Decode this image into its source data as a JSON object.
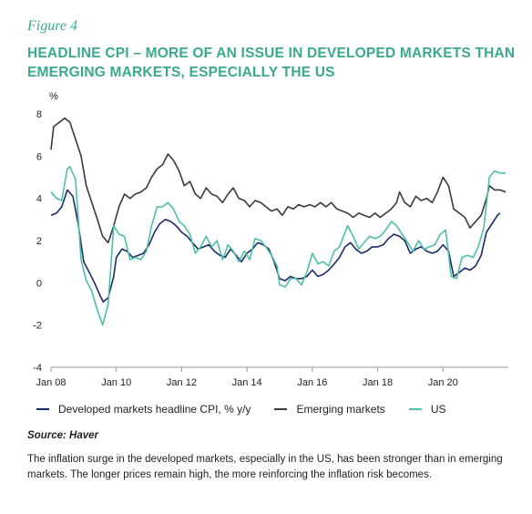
{
  "figure_label": "Figure 4",
  "title_lines": [
    "HEADLINE CPI – MORE OF AN ISSUE IN DEVELOPED MARKETS THAN",
    "EMERGING MARKETS, ESPECIALLY THE US"
  ],
  "source": "Source: Haver",
  "note": "The inflation surge in the developed markets, especially in the US, has been stronger than in emerging markets. The longer prices remain high, the more reinforcing the inflation risk becomes.",
  "colors": {
    "developed": "#1b2a6b",
    "emerging": "#3a3a3a",
    "us": "#4dbfa8",
    "title": "#3aaa8e",
    "grid": "#d9d9d9"
  },
  "chart_data": {
    "type": "line",
    "ylabel": "%",
    "ylim": [
      -4,
      8
    ],
    "yticks": [
      -4,
      -2,
      0,
      2,
      4,
      6,
      8
    ],
    "xlim": [
      2008.0,
      2022.0
    ],
    "xticks": [
      {
        "x": 2008,
        "label": "Jan 08"
      },
      {
        "x": 2010,
        "label": "Jan 10"
      },
      {
        "x": 2012,
        "label": "Jan 12"
      },
      {
        "x": 2014,
        "label": "Jan 14"
      },
      {
        "x": 2016,
        "label": "Jan 16"
      },
      {
        "x": 2018,
        "label": "Jan 18"
      },
      {
        "x": 2020,
        "label": "Jan 20"
      }
    ],
    "grid": false,
    "legend_position": "bottom",
    "series": [
      {
        "name": "Developed markets headline CPI, % y/y",
        "color": "#1b2a6b",
        "points": [
          [
            2008.0,
            3.2
          ],
          [
            2008.17,
            3.3
          ],
          [
            2008.33,
            3.6
          ],
          [
            2008.5,
            4.4
          ],
          [
            2008.67,
            4.1
          ],
          [
            2008.83,
            2.8
          ],
          [
            2009.0,
            1.0
          ],
          [
            2009.17,
            0.5
          ],
          [
            2009.33,
            0.0
          ],
          [
            2009.5,
            -0.6
          ],
          [
            2009.6,
            -0.9
          ],
          [
            2009.75,
            -0.7
          ],
          [
            2009.92,
            0.3
          ],
          [
            2010.0,
            1.2
          ],
          [
            2010.17,
            1.6
          ],
          [
            2010.33,
            1.5
          ],
          [
            2010.5,
            1.2
          ],
          [
            2010.67,
            1.3
          ],
          [
            2010.83,
            1.4
          ],
          [
            2011.0,
            1.8
          ],
          [
            2011.17,
            2.4
          ],
          [
            2011.33,
            2.8
          ],
          [
            2011.5,
            3.0
          ],
          [
            2011.67,
            2.9
          ],
          [
            2011.83,
            2.7
          ],
          [
            2012.0,
            2.4
          ],
          [
            2012.17,
            2.2
          ],
          [
            2012.33,
            1.9
          ],
          [
            2012.5,
            1.6
          ],
          [
            2012.67,
            1.7
          ],
          [
            2012.83,
            1.8
          ],
          [
            2013.0,
            1.5
          ],
          [
            2013.17,
            1.3
          ],
          [
            2013.33,
            1.2
          ],
          [
            2013.5,
            1.6
          ],
          [
            2013.67,
            1.3
          ],
          [
            2013.83,
            1.0
          ],
          [
            2014.0,
            1.4
          ],
          [
            2014.17,
            1.6
          ],
          [
            2014.33,
            1.9
          ],
          [
            2014.5,
            1.8
          ],
          [
            2014.67,
            1.6
          ],
          [
            2014.83,
            1.0
          ],
          [
            2015.0,
            0.2
          ],
          [
            2015.17,
            0.1
          ],
          [
            2015.33,
            0.3
          ],
          [
            2015.5,
            0.2
          ],
          [
            2015.67,
            0.2
          ],
          [
            2015.83,
            0.3
          ],
          [
            2016.0,
            0.6
          ],
          [
            2016.17,
            0.3
          ],
          [
            2016.33,
            0.4
          ],
          [
            2016.5,
            0.6
          ],
          [
            2016.67,
            0.9
          ],
          [
            2016.83,
            1.2
          ],
          [
            2017.0,
            1.7
          ],
          [
            2017.17,
            1.9
          ],
          [
            2017.33,
            1.6
          ],
          [
            2017.5,
            1.4
          ],
          [
            2017.67,
            1.5
          ],
          [
            2017.83,
            1.7
          ],
          [
            2018.0,
            1.7
          ],
          [
            2018.17,
            1.8
          ],
          [
            2018.33,
            2.1
          ],
          [
            2018.5,
            2.3
          ],
          [
            2018.67,
            2.2
          ],
          [
            2018.83,
            2.0
          ],
          [
            2019.0,
            1.4
          ],
          [
            2019.17,
            1.6
          ],
          [
            2019.33,
            1.7
          ],
          [
            2019.5,
            1.5
          ],
          [
            2019.67,
            1.4
          ],
          [
            2019.83,
            1.5
          ],
          [
            2020.0,
            1.8
          ],
          [
            2020.17,
            1.5
          ],
          [
            2020.33,
            0.3
          ],
          [
            2020.5,
            0.5
          ],
          [
            2020.67,
            0.7
          ],
          [
            2020.83,
            0.6
          ],
          [
            2021.0,
            0.8
          ],
          [
            2021.17,
            1.3
          ],
          [
            2021.33,
            2.4
          ],
          [
            2021.5,
            2.8
          ],
          [
            2021.67,
            3.2
          ],
          [
            2021.75,
            3.3
          ]
        ]
      },
      {
        "name": "Emerging markets",
        "color": "#3a3a3a",
        "points": [
          [
            2008.0,
            6.3
          ],
          [
            2008.08,
            7.4
          ],
          [
            2008.25,
            7.6
          ],
          [
            2008.42,
            7.8
          ],
          [
            2008.58,
            7.6
          ],
          [
            2008.75,
            6.8
          ],
          [
            2008.92,
            6.0
          ],
          [
            2009.08,
            4.6
          ],
          [
            2009.25,
            3.8
          ],
          [
            2009.42,
            3.0
          ],
          [
            2009.58,
            2.2
          ],
          [
            2009.75,
            1.9
          ],
          [
            2009.92,
            2.7
          ],
          [
            2010.08,
            3.6
          ],
          [
            2010.25,
            4.2
          ],
          [
            2010.42,
            4.0
          ],
          [
            2010.58,
            4.2
          ],
          [
            2010.75,
            4.3
          ],
          [
            2010.92,
            4.5
          ],
          [
            2011.08,
            5.0
          ],
          [
            2011.25,
            5.4
          ],
          [
            2011.42,
            5.6
          ],
          [
            2011.58,
            6.1
          ],
          [
            2011.75,
            5.8
          ],
          [
            2011.92,
            5.3
          ],
          [
            2012.08,
            4.6
          ],
          [
            2012.25,
            4.8
          ],
          [
            2012.42,
            4.2
          ],
          [
            2012.58,
            4.0
          ],
          [
            2012.75,
            4.5
          ],
          [
            2012.92,
            4.2
          ],
          [
            2013.08,
            4.1
          ],
          [
            2013.25,
            3.8
          ],
          [
            2013.42,
            4.2
          ],
          [
            2013.58,
            4.5
          ],
          [
            2013.75,
            4.0
          ],
          [
            2013.92,
            3.9
          ],
          [
            2014.08,
            3.6
          ],
          [
            2014.25,
            3.9
          ],
          [
            2014.42,
            3.8
          ],
          [
            2014.58,
            3.6
          ],
          [
            2014.75,
            3.4
          ],
          [
            2014.92,
            3.5
          ],
          [
            2015.08,
            3.2
          ],
          [
            2015.25,
            3.6
          ],
          [
            2015.42,
            3.5
          ],
          [
            2015.58,
            3.7
          ],
          [
            2015.75,
            3.6
          ],
          [
            2015.92,
            3.7
          ],
          [
            2016.08,
            3.6
          ],
          [
            2016.25,
            3.8
          ],
          [
            2016.42,
            3.6
          ],
          [
            2016.58,
            3.8
          ],
          [
            2016.75,
            3.5
          ],
          [
            2016.92,
            3.4
          ],
          [
            2017.08,
            3.3
          ],
          [
            2017.25,
            3.1
          ],
          [
            2017.42,
            3.3
          ],
          [
            2017.58,
            3.2
          ],
          [
            2017.75,
            3.1
          ],
          [
            2017.92,
            3.3
          ],
          [
            2018.08,
            3.1
          ],
          [
            2018.25,
            3.3
          ],
          [
            2018.42,
            3.5
          ],
          [
            2018.58,
            3.8
          ],
          [
            2018.67,
            4.3
          ],
          [
            2018.83,
            3.8
          ],
          [
            2019.0,
            3.6
          ],
          [
            2019.17,
            4.1
          ],
          [
            2019.33,
            3.9
          ],
          [
            2019.5,
            4.0
          ],
          [
            2019.67,
            3.8
          ],
          [
            2019.83,
            4.3
          ],
          [
            2020.0,
            5.0
          ],
          [
            2020.17,
            4.6
          ],
          [
            2020.33,
            3.5
          ],
          [
            2020.5,
            3.3
          ],
          [
            2020.67,
            3.1
          ],
          [
            2020.83,
            2.6
          ],
          [
            2021.0,
            2.9
          ],
          [
            2021.17,
            3.2
          ],
          [
            2021.33,
            4.0
          ],
          [
            2021.42,
            4.6
          ],
          [
            2021.58,
            4.4
          ],
          [
            2021.75,
            4.4
          ],
          [
            2021.92,
            4.3
          ]
        ]
      },
      {
        "name": "US",
        "color": "#4dbfa8",
        "points": [
          [
            2008.0,
            4.3
          ],
          [
            2008.17,
            4.0
          ],
          [
            2008.33,
            3.9
          ],
          [
            2008.5,
            5.4
          ],
          [
            2008.58,
            5.5
          ],
          [
            2008.75,
            4.9
          ],
          [
            2008.92,
            1.1
          ],
          [
            2009.08,
            0.1
          ],
          [
            2009.25,
            -0.4
          ],
          [
            2009.42,
            -1.3
          ],
          [
            2009.58,
            -2.0
          ],
          [
            2009.75,
            -1.0
          ],
          [
            2009.92,
            2.7
          ],
          [
            2010.08,
            2.3
          ],
          [
            2010.25,
            2.2
          ],
          [
            2010.42,
            1.1
          ],
          [
            2010.58,
            1.2
          ],
          [
            2010.75,
            1.1
          ],
          [
            2010.92,
            1.5
          ],
          [
            2011.08,
            2.7
          ],
          [
            2011.25,
            3.6
          ],
          [
            2011.42,
            3.6
          ],
          [
            2011.58,
            3.8
          ],
          [
            2011.75,
            3.5
          ],
          [
            2011.92,
            2.9
          ],
          [
            2012.08,
            2.7
          ],
          [
            2012.25,
            2.3
          ],
          [
            2012.42,
            1.4
          ],
          [
            2012.58,
            1.7
          ],
          [
            2012.75,
            2.2
          ],
          [
            2012.92,
            1.7
          ],
          [
            2013.08,
            2.0
          ],
          [
            2013.25,
            1.1
          ],
          [
            2013.42,
            1.8
          ],
          [
            2013.58,
            1.5
          ],
          [
            2013.75,
            1.0
          ],
          [
            2013.92,
            1.5
          ],
          [
            2014.08,
            1.1
          ],
          [
            2014.25,
            2.1
          ],
          [
            2014.42,
            2.0
          ],
          [
            2014.58,
            1.7
          ],
          [
            2014.75,
            1.3
          ],
          [
            2014.92,
            0.8
          ],
          [
            2015.0,
            -0.1
          ],
          [
            2015.17,
            -0.2
          ],
          [
            2015.33,
            0.2
          ],
          [
            2015.5,
            0.2
          ],
          [
            2015.67,
            -0.1
          ],
          [
            2015.83,
            0.5
          ],
          [
            2016.0,
            1.4
          ],
          [
            2016.17,
            0.9
          ],
          [
            2016.33,
            1.0
          ],
          [
            2016.5,
            0.8
          ],
          [
            2016.67,
            1.5
          ],
          [
            2016.83,
            1.7
          ],
          [
            2017.08,
            2.7
          ],
          [
            2017.25,
            2.2
          ],
          [
            2017.42,
            1.6
          ],
          [
            2017.58,
            1.9
          ],
          [
            2017.75,
            2.2
          ],
          [
            2017.92,
            2.1
          ],
          [
            2018.08,
            2.2
          ],
          [
            2018.25,
            2.5
          ],
          [
            2018.42,
            2.9
          ],
          [
            2018.58,
            2.7
          ],
          [
            2018.75,
            2.3
          ],
          [
            2018.92,
            1.9
          ],
          [
            2019.08,
            1.5
          ],
          [
            2019.25,
            2.0
          ],
          [
            2019.42,
            1.6
          ],
          [
            2019.58,
            1.7
          ],
          [
            2019.75,
            1.8
          ],
          [
            2019.92,
            2.3
          ],
          [
            2020.08,
            2.5
          ],
          [
            2020.25,
            0.3
          ],
          [
            2020.42,
            0.2
          ],
          [
            2020.58,
            1.2
          ],
          [
            2020.75,
            1.3
          ],
          [
            2020.92,
            1.2
          ],
          [
            2021.08,
            1.7
          ],
          [
            2021.25,
            2.6
          ],
          [
            2021.42,
            5.0
          ],
          [
            2021.58,
            5.3
          ],
          [
            2021.75,
            5.2
          ],
          [
            2021.92,
            5.2
          ]
        ]
      }
    ]
  }
}
